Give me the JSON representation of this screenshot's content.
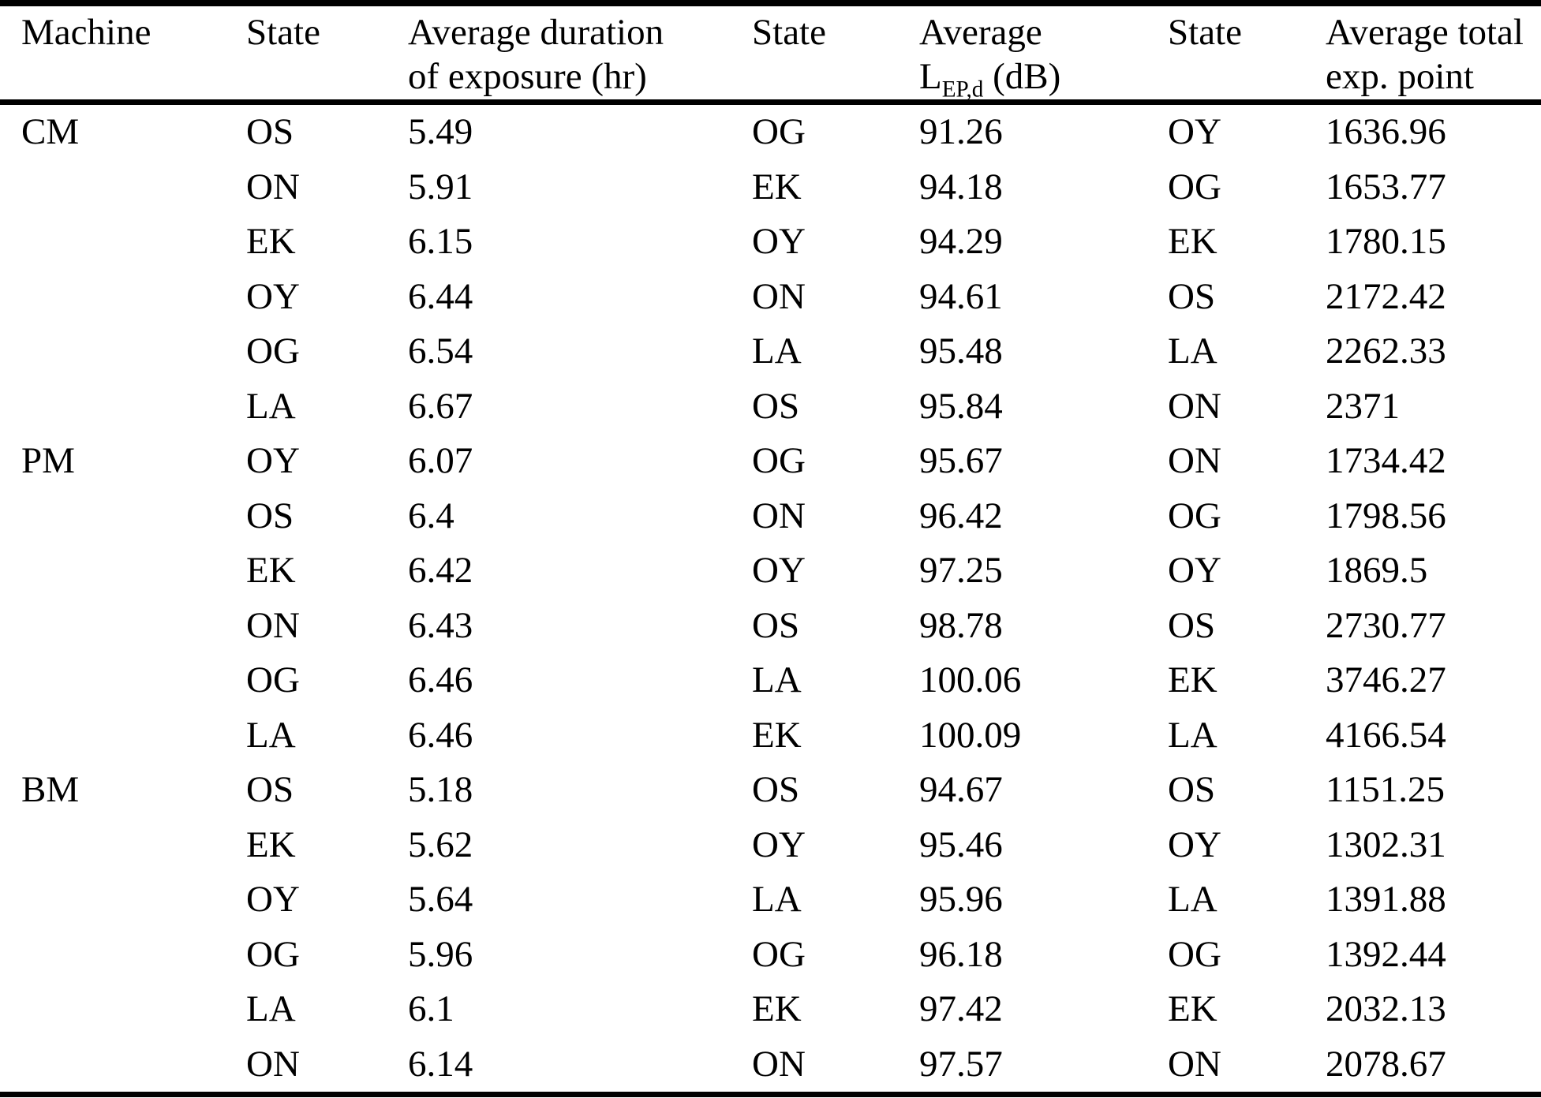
{
  "table": {
    "headers": {
      "machine": "Machine",
      "state_duration": "State",
      "avg_duration_line1": "Average duration",
      "avg_duration_line2": "of exposure (hr)",
      "state_lepd": "State",
      "avg_lepd_line1": "Average",
      "avg_lepd_symbol": "L",
      "avg_lepd_subscript": "EP,d",
      "avg_lepd_unit": "(dB)",
      "state_total": "State",
      "avg_total_line1": "Average total",
      "avg_total_line2": "exp. point"
    },
    "rows": [
      {
        "machine": "CM",
        "state_duration": "OS",
        "avg_duration": "5.49",
        "state_lepd": "OG",
        "avg_lepd": "91.26",
        "state_total": "OY",
        "avg_total": "1636.96"
      },
      {
        "machine": "",
        "state_duration": "ON",
        "avg_duration": "5.91",
        "state_lepd": "EK",
        "avg_lepd": "94.18",
        "state_total": "OG",
        "avg_total": "1653.77"
      },
      {
        "machine": "",
        "state_duration": "EK",
        "avg_duration": "6.15",
        "state_lepd": "OY",
        "avg_lepd": "94.29",
        "state_total": "EK",
        "avg_total": "1780.15"
      },
      {
        "machine": "",
        "state_duration": "OY",
        "avg_duration": "6.44",
        "state_lepd": "ON",
        "avg_lepd": "94.61",
        "state_total": "OS",
        "avg_total": "2172.42"
      },
      {
        "machine": "",
        "state_duration": "OG",
        "avg_duration": "6.54",
        "state_lepd": "LA",
        "avg_lepd": "95.48",
        "state_total": "LA",
        "avg_total": "2262.33"
      },
      {
        "machine": "",
        "state_duration": "LA",
        "avg_duration": "6.67",
        "state_lepd": "OS",
        "avg_lepd": "95.84",
        "state_total": "ON",
        "avg_total": "2371"
      },
      {
        "machine": "PM",
        "state_duration": "OY",
        "avg_duration": "6.07",
        "state_lepd": "OG",
        "avg_lepd": "95.67",
        "state_total": "ON",
        "avg_total": "1734.42"
      },
      {
        "machine": "",
        "state_duration": "OS",
        "avg_duration": "6.4",
        "state_lepd": "ON",
        "avg_lepd": "96.42",
        "state_total": "OG",
        "avg_total": "1798.56"
      },
      {
        "machine": "",
        "state_duration": "EK",
        "avg_duration": "6.42",
        "state_lepd": "OY",
        "avg_lepd": "97.25",
        "state_total": "OY",
        "avg_total": "1869.5"
      },
      {
        "machine": "",
        "state_duration": "ON",
        "avg_duration": "6.43",
        "state_lepd": "OS",
        "avg_lepd": "98.78",
        "state_total": "OS",
        "avg_total": "2730.77"
      },
      {
        "machine": "",
        "state_duration": "OG",
        "avg_duration": "6.46",
        "state_lepd": "LA",
        "avg_lepd": "100.06",
        "state_total": "EK",
        "avg_total": "3746.27"
      },
      {
        "machine": "",
        "state_duration": "LA",
        "avg_duration": "6.46",
        "state_lepd": "EK",
        "avg_lepd": "100.09",
        "state_total": "LA",
        "avg_total": "4166.54"
      },
      {
        "machine": "BM",
        "state_duration": "OS",
        "avg_duration": "5.18",
        "state_lepd": "OS",
        "avg_lepd": "94.67",
        "state_total": "OS",
        "avg_total": "1151.25"
      },
      {
        "machine": "",
        "state_duration": "EK",
        "avg_duration": "5.62",
        "state_lepd": "OY",
        "avg_lepd": "95.46",
        "state_total": "OY",
        "avg_total": "1302.31"
      },
      {
        "machine": "",
        "state_duration": "OY",
        "avg_duration": "5.64",
        "state_lepd": "LA",
        "avg_lepd": "95.96",
        "state_total": "LA",
        "avg_total": "1391.88"
      },
      {
        "machine": "",
        "state_duration": "OG",
        "avg_duration": "5.96",
        "state_lepd": "OG",
        "avg_lepd": "96.18",
        "state_total": "OG",
        "avg_total": "1392.44"
      },
      {
        "machine": "",
        "state_duration": "LA",
        "avg_duration": "6.1",
        "state_lepd": "EK",
        "avg_lepd": "97.42",
        "state_total": "EK",
        "avg_total": "2032.13"
      },
      {
        "machine": "",
        "state_duration": "ON",
        "avg_duration": "6.14",
        "state_lepd": "ON",
        "avg_lepd": "97.57",
        "state_total": "ON",
        "avg_total": "2078.67"
      }
    ]
  }
}
